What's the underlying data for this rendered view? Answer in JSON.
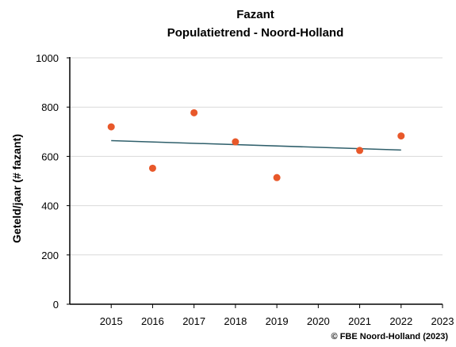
{
  "chart_data": {
    "type": "scatter",
    "title": "Fazant",
    "subtitle": "Populatietrend - Noord-Holland",
    "xlabel": "",
    "ylabel": "Geteld/jaar (# fazant)",
    "xlim": [
      2014,
      2023
    ],
    "ylim": [
      0,
      1000
    ],
    "x_ticks": [
      2015,
      2016,
      2017,
      2018,
      2019,
      2020,
      2021,
      2022,
      2023
    ],
    "y_ticks": [
      0,
      200,
      400,
      600,
      800,
      1000
    ],
    "grid": true,
    "legend": "none",
    "points": [
      {
        "x": 2015,
        "y": 720
      },
      {
        "x": 2016,
        "y": 552
      },
      {
        "x": 2017,
        "y": 777
      },
      {
        "x": 2018,
        "y": 659
      },
      {
        "x": 2019,
        "y": 514
      },
      {
        "x": 2021,
        "y": 624
      },
      {
        "x": 2022,
        "y": 683
      }
    ],
    "trendline": {
      "x": [
        2015,
        2022
      ],
      "y": [
        664,
        626
      ]
    },
    "colors": {
      "points": "#e8582a",
      "trend": "#2f5f6b",
      "grid": "#d9d9d9",
      "axis": "#000000"
    },
    "credit": "© FBE Noord-Holland (2023)"
  }
}
